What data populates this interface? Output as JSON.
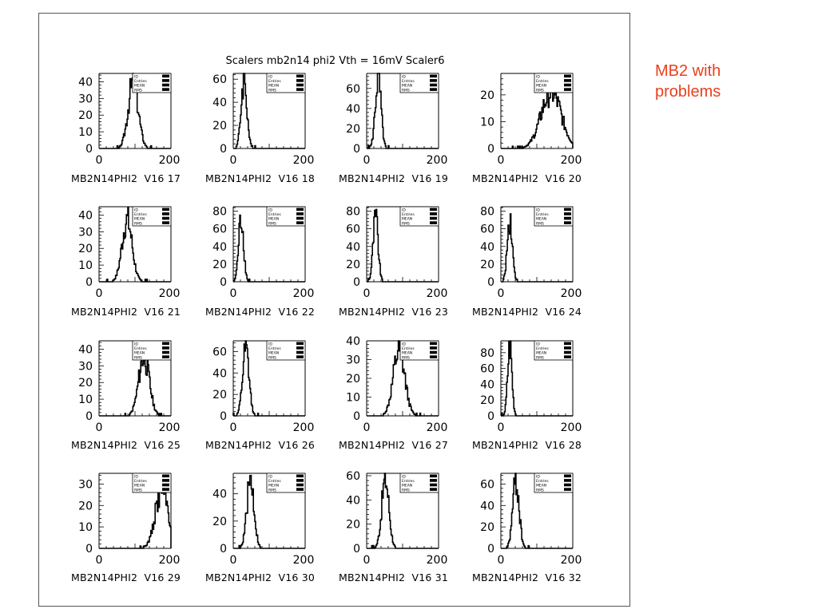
{
  "figure": {
    "title": "Scalers mb2n14 phi2 Vth = 16mV Scaler6",
    "annotation_lines": [
      "MB2 with",
      "problems"
    ],
    "stats_box_labels": [
      "ID",
      "Entries",
      "MEAN",
      "RMS"
    ]
  },
  "chart_data": [
    {
      "type": "bar",
      "label": "MB2N14PHI2  V16 17",
      "xlim": [
        0,
        200
      ],
      "ylim": [
        0,
        45
      ],
      "yticks": [
        0,
        10,
        20,
        30,
        40
      ],
      "mean": 95,
      "rms": 14,
      "peak": 40
    },
    {
      "type": "bar",
      "label": "MB2N14PHI2  V16 18",
      "xlim": [
        0,
        200
      ],
      "ylim": [
        0,
        65
      ],
      "yticks": [
        0,
        20,
        40,
        60
      ],
      "mean": 30,
      "rms": 8,
      "peak": 60
    },
    {
      "type": "bar",
      "label": "MB2N14PHI2  V16 19",
      "xlim": [
        0,
        200
      ],
      "ylim": [
        0,
        75
      ],
      "yticks": [
        0,
        20,
        40,
        60
      ],
      "mean": 32,
      "rms": 8,
      "peak": 70
    },
    {
      "type": "bar",
      "label": "MB2N14PHI2  V16 20",
      "xlim": [
        0,
        200
      ],
      "ylim": [
        0,
        28
      ],
      "yticks": [
        0,
        10,
        20
      ],
      "mean": 140,
      "rms": 28,
      "peak": 21
    },
    {
      "type": "bar",
      "label": "MB2N14PHI2  V16 21",
      "xlim": [
        0,
        200
      ],
      "ylim": [
        0,
        45
      ],
      "yticks": [
        0,
        10,
        20,
        30,
        40
      ],
      "mean": 78,
      "rms": 14,
      "peak": 37
    },
    {
      "type": "bar",
      "label": "MB2N14PHI2  V16 22",
      "xlim": [
        0,
        200
      ],
      "ylim": [
        0,
        85
      ],
      "yticks": [
        0,
        20,
        40,
        60,
        80
      ],
      "mean": 22,
      "rms": 7,
      "peak": 72
    },
    {
      "type": "bar",
      "label": "MB2N14PHI2  V16 23",
      "xlim": [
        0,
        200
      ],
      "ylim": [
        0,
        85
      ],
      "yticks": [
        0,
        20,
        40,
        60,
        80
      ],
      "mean": 25,
      "rms": 7,
      "peak": 72
    },
    {
      "type": "bar",
      "label": "MB2N14PHI2  V16 24",
      "xlim": [
        0,
        200
      ],
      "ylim": [
        0,
        85
      ],
      "yticks": [
        0,
        20,
        40,
        60,
        80
      ],
      "mean": 25,
      "rms": 7,
      "peak": 72
    },
    {
      "type": "bar",
      "label": "MB2N14PHI2  V16 25",
      "xlim": [
        0,
        200
      ],
      "ylim": [
        0,
        45
      ],
      "yticks": [
        0,
        10,
        20,
        30,
        40
      ],
      "mean": 125,
      "rms": 15,
      "peak": 35
    },
    {
      "type": "bar",
      "label": "MB2N14PHI2  V16 26",
      "xlim": [
        0,
        200
      ],
      "ylim": [
        0,
        70
      ],
      "yticks": [
        0,
        20,
        40,
        60
      ],
      "mean": 35,
      "rms": 9,
      "peak": 60
    },
    {
      "type": "bar",
      "label": "MB2N14PHI2  V16 27",
      "xlim": [
        0,
        200
      ],
      "ylim": [
        0,
        40
      ],
      "yticks": [
        0,
        10,
        20,
        30,
        40
      ],
      "mean": 90,
      "rms": 16,
      "peak": 35
    },
    {
      "type": "bar",
      "label": "MB2N14PHI2  V16 28",
      "xlim": [
        0,
        200
      ],
      "ylim": [
        0,
        95
      ],
      "yticks": [
        0,
        20,
        40,
        60,
        80
      ],
      "mean": 25,
      "rms": 6,
      "peak": 88
    },
    {
      "type": "bar",
      "label": "MB2N14PHI2  V16 29",
      "xlim": [
        0,
        200
      ],
      "ylim": [
        0,
        35
      ],
      "yticks": [
        0,
        10,
        20,
        30
      ],
      "mean": 175,
      "rms": 18,
      "peak": 28
    },
    {
      "type": "bar",
      "label": "MB2N14PHI2  V16 30",
      "xlim": [
        0,
        200
      ],
      "ylim": [
        0,
        55
      ],
      "yticks": [
        0,
        20,
        40
      ],
      "mean": 48,
      "rms": 10,
      "peak": 50
    },
    {
      "type": "bar",
      "label": "MB2N14PHI2  V16 31",
      "xlim": [
        0,
        200
      ],
      "ylim": [
        0,
        62
      ],
      "yticks": [
        0,
        20,
        40,
        60
      ],
      "mean": 52,
      "rms": 10,
      "peak": 57
    },
    {
      "type": "bar",
      "label": "MB2N14PHI2  V16 32",
      "xlim": [
        0,
        200
      ],
      "ylim": [
        0,
        70
      ],
      "yticks": [
        0,
        20,
        40,
        60
      ],
      "mean": 42,
      "rms": 9,
      "peak": 62
    }
  ]
}
